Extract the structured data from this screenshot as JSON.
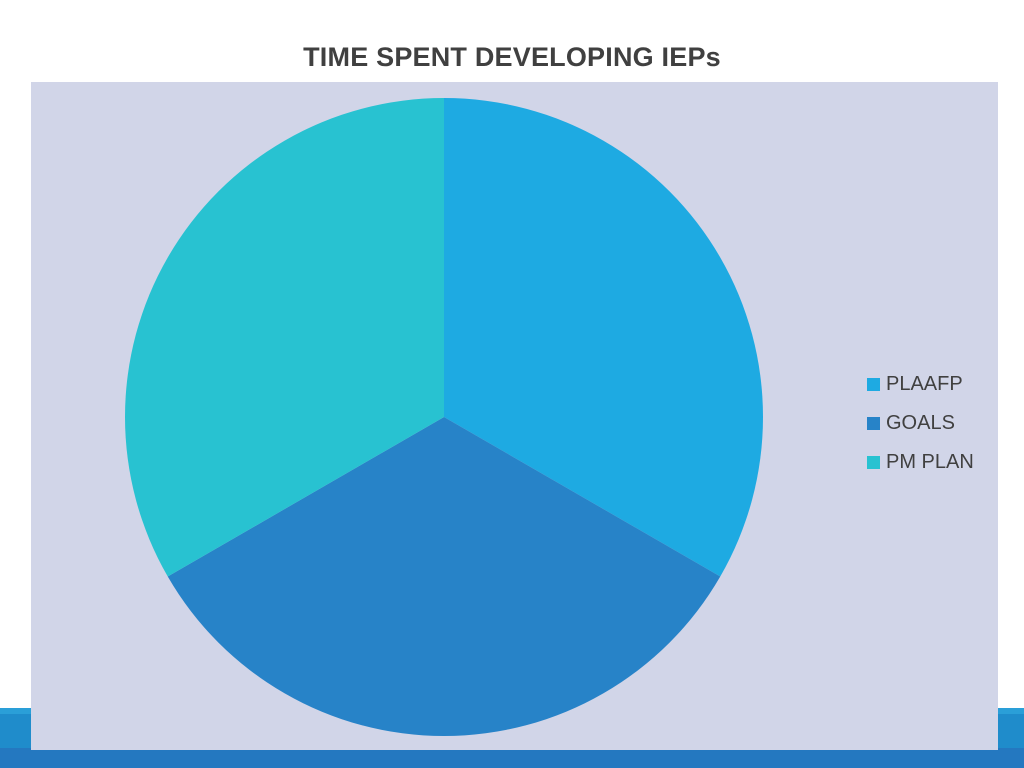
{
  "chart_data": {
    "type": "pie",
    "title": "TIME SPENT DEVELOPING IEPs",
    "categories": [
      "PLAAFP",
      "GOALS",
      "PM PLAN"
    ],
    "values": [
      33.3,
      33.3,
      33.3
    ],
    "colors": [
      "#1eaae2",
      "#2783c8",
      "#28c2d1"
    ],
    "legend_position": "right",
    "background": "#d1d5e8"
  }
}
